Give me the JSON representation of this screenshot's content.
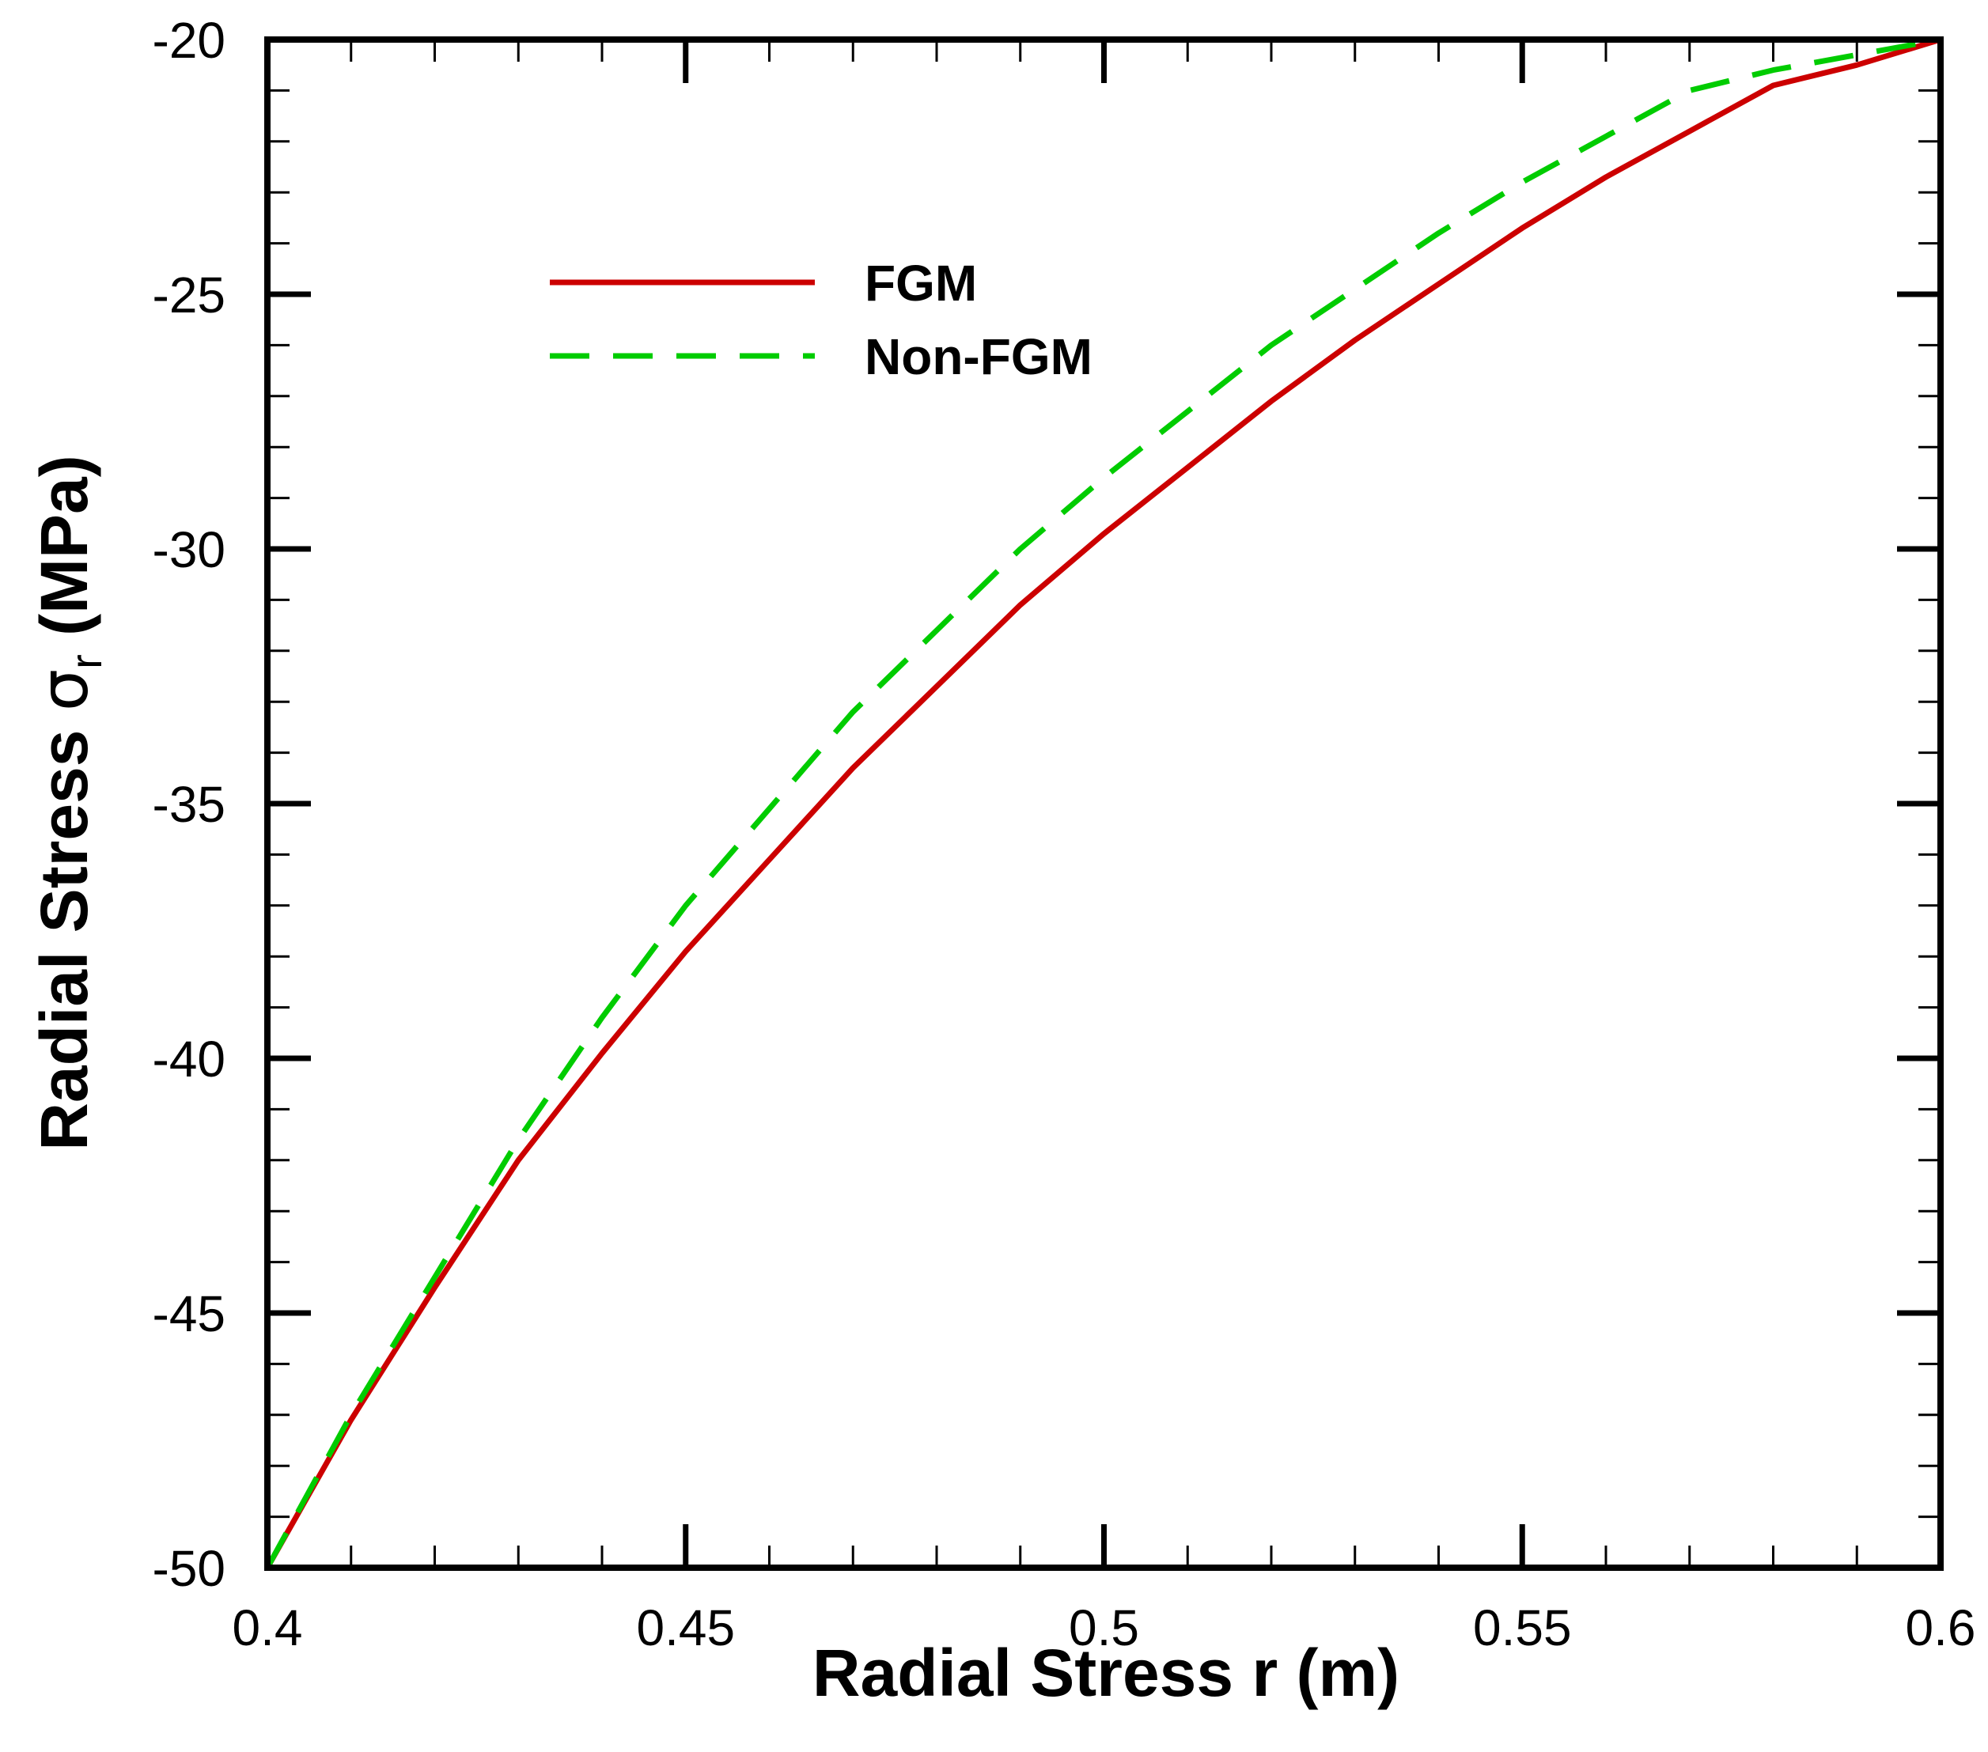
{
  "chart_data": {
    "type": "line",
    "title": "",
    "xlabel": "Radial Stress r (m)",
    "ylabel": {
      "main": "Radial Stress ",
      "symbol": "σ",
      "subscript": "r",
      "unit": " (MPa)"
    },
    "xlim": [
      0.4,
      0.6
    ],
    "ylim": [
      -50,
      -20
    ],
    "x_ticks": [
      0.4,
      0.45,
      0.5,
      0.55,
      0.6
    ],
    "x_tick_labels": [
      "0.4",
      "0.45",
      "0.5",
      "0.55",
      "0.6"
    ],
    "y_ticks": [
      -50,
      -45,
      -40,
      -35,
      -30,
      -25,
      -20
    ],
    "y_tick_labels": [
      "-50",
      "-45",
      "-40",
      "-35",
      "-30",
      "-25",
      "-20"
    ],
    "x_minor_step": 0.01,
    "y_minor_step": 1,
    "grid": false,
    "legend_position": "top-left",
    "x": [
      0.4,
      0.41,
      0.42,
      0.43,
      0.44,
      0.45,
      0.46,
      0.47,
      0.48,
      0.49,
      0.5,
      0.51,
      0.52,
      0.53,
      0.54,
      0.55,
      0.56,
      0.57,
      0.58,
      0.59,
      0.6
    ],
    "series": [
      {
        "name": "FGM",
        "color": "#cc0000",
        "style": "solid",
        "values": [
          -50.0,
          -47.1,
          -44.5,
          -42.0,
          -39.9,
          -37.9,
          -36.1,
          -34.3,
          -32.7,
          -31.1,
          -29.7,
          -28.4,
          -27.1,
          -25.9,
          -24.8,
          -23.7,
          -22.7,
          -21.8,
          -20.9,
          -20.5,
          -20.0
        ]
      },
      {
        "name": "Non-FGM",
        "color": "#00cc00",
        "style": "dashed",
        "values": [
          -50.0,
          -47.0,
          -44.3,
          -41.6,
          -39.2,
          -37.0,
          -35.1,
          -33.2,
          -31.6,
          -30.0,
          -28.6,
          -27.3,
          -26.0,
          -24.9,
          -23.8,
          -22.8,
          -21.9,
          -21.0,
          -20.6,
          -20.3,
          -20.0
        ]
      }
    ]
  }
}
